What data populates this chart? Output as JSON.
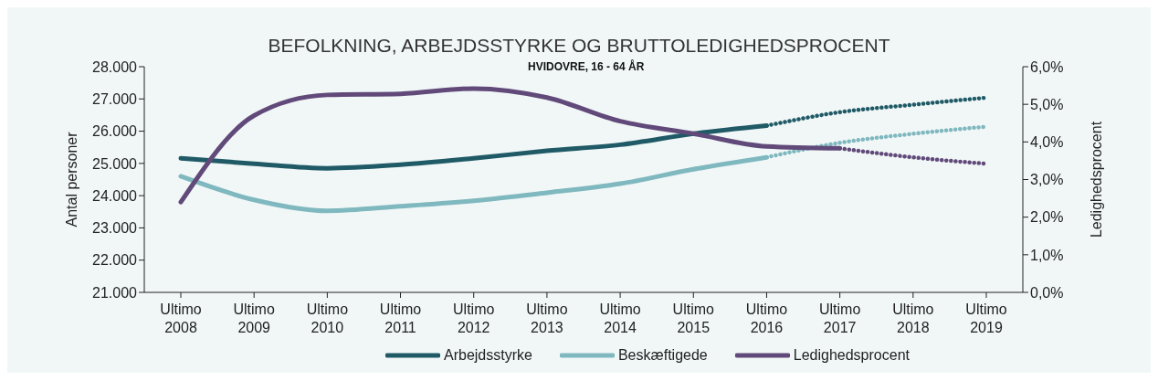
{
  "chart_data": {
    "type": "line",
    "title": "BEFOLKNING, ARBEJDSSTYRKE OG BRUTTOLEDIGHEDSPROCENT",
    "subtitle": "HVIDOVRE, 16 - 64 ÅR",
    "ylabel": "Antal personer",
    "y2label": "Ledighedsprocent",
    "categories": [
      "Ultimo 2008",
      "Ultimo 2009",
      "Ultimo 2010",
      "Ultimo 2011",
      "Ultimo 2012",
      "Ultimo 2013",
      "Ultimo 2014",
      "Ultimo 2015",
      "Ultimo 2016",
      "Ultimo 2017",
      "Ultimo 2018",
      "Ultimo 2019"
    ],
    "series": [
      {
        "name": "Arbejdsstyrke",
        "color": "#1f5a66",
        "line_style": "solid",
        "values": [
          25160,
          24990,
          24850,
          24960,
          25160,
          25390,
          25580,
          25920,
          26170,
          null,
          null,
          null
        ]
      },
      {
        "color": "#1f5a66",
        "line_style": "dotted",
        "values": [
          null,
          null,
          null,
          null,
          null,
          null,
          null,
          null,
          26170,
          26590,
          26820,
          27040
        ]
      },
      {
        "name": "Beskæftigede",
        "color": "#7fb8bf",
        "line_style": "solid",
        "values": [
          24600,
          23870,
          23530,
          23670,
          23840,
          24090,
          24370,
          24820,
          25190,
          null,
          null,
          null
        ]
      },
      {
        "color": "#7fb8bf",
        "line_style": "dotted",
        "values": [
          null,
          null,
          null,
          null,
          null,
          null,
          null,
          null,
          25190,
          25640,
          25920,
          26140
        ]
      },
      {
        "name": "Ledighedsprocent",
        "color": "#614a7a",
        "line_style": "solid",
        "axis": "y2",
        "values": [
          2.4,
          4.7,
          5.25,
          5.28,
          5.42,
          5.18,
          4.55,
          4.22,
          3.88,
          3.83,
          null,
          null
        ]
      },
      {
        "color": "#614a7a",
        "line_style": "dotted",
        "axis": "y2",
        "values": [
          null,
          null,
          null,
          null,
          null,
          null,
          null,
          null,
          null,
          3.83,
          3.59,
          3.42
        ]
      }
    ],
    "ylim": [
      21000,
      28000
    ],
    "yticks": [
      {
        "value": 21000,
        "label": "21.000"
      },
      {
        "value": 22000,
        "label": "22.000"
      },
      {
        "value": 23000,
        "label": "23.000"
      },
      {
        "value": 24000,
        "label": "24.000"
      },
      {
        "value": 25000,
        "label": "25.000"
      },
      {
        "value": 26000,
        "label": "26.000"
      },
      {
        "value": 27000,
        "label": "27.000"
      },
      {
        "value": 28000,
        "label": "28.000"
      }
    ],
    "y2lim": [
      0,
      6
    ],
    "y2ticks": [
      {
        "value": 0,
        "label": "0,0%"
      },
      {
        "value": 1,
        "label": "1,0%"
      },
      {
        "value": 2,
        "label": "2,0%"
      },
      {
        "value": 3,
        "label": "3,0%"
      },
      {
        "value": 4,
        "label": "4,0%"
      },
      {
        "value": 5,
        "label": "5,0%"
      },
      {
        "value": 6,
        "label": "6,0%"
      }
    ],
    "marker": "none",
    "legend": "bottom"
  }
}
